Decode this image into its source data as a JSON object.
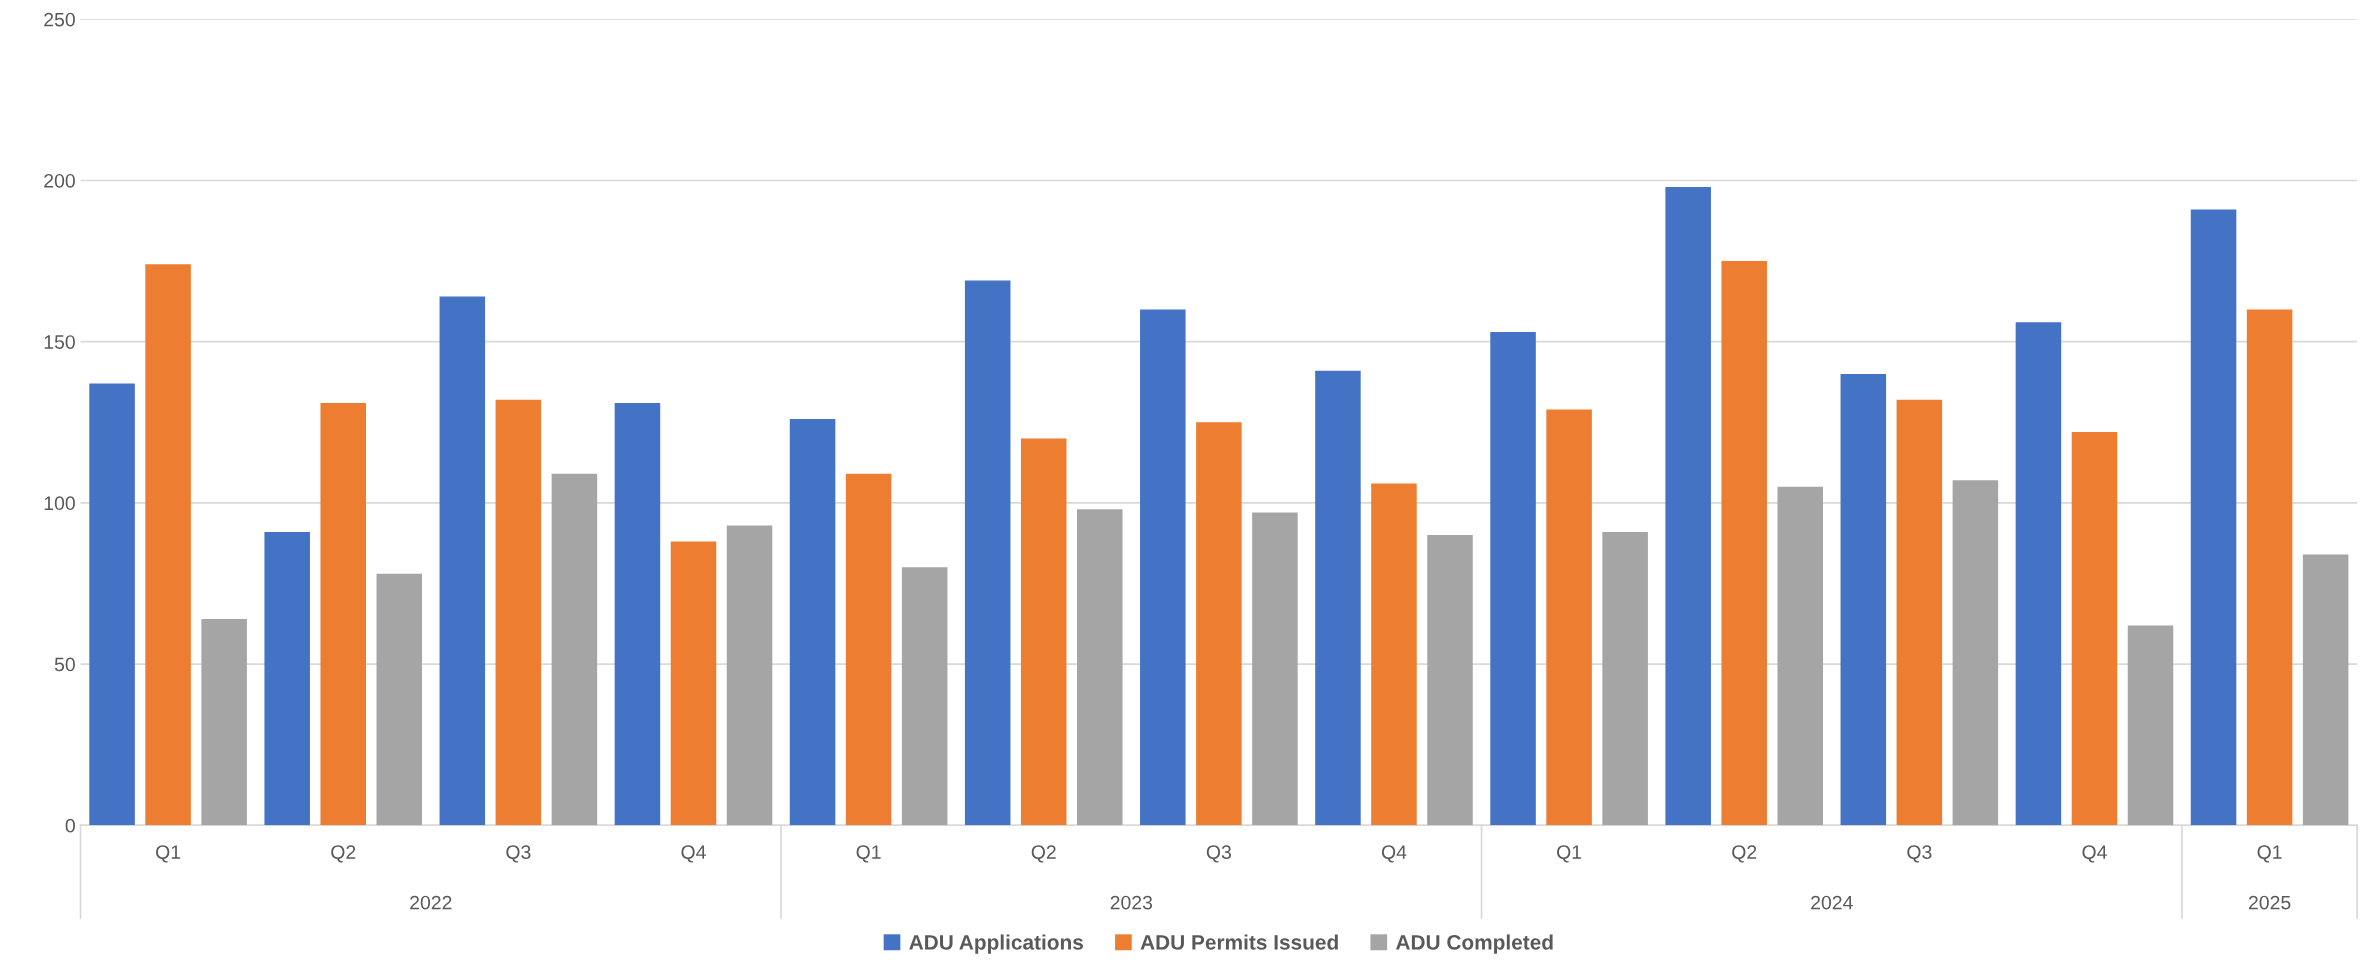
{
  "chart_data": {
    "type": "bar",
    "categories": [
      "Q1",
      "Q2",
      "Q3",
      "Q4",
      "Q1",
      "Q2",
      "Q3",
      "Q4",
      "Q1",
      "Q2",
      "Q3",
      "Q4",
      "Q1"
    ],
    "annotations": [
      "2022",
      "2023",
      "2024",
      "2025"
    ],
    "series": [
      {
        "name": "ADU Applications",
        "color": "#4472c4",
        "values": [
          137,
          91,
          164,
          131,
          126,
          169,
          160,
          141,
          153,
          198,
          140,
          156,
          191
        ]
      },
      {
        "name": "ADU Permits Issued",
        "color": "#ed7d31",
        "values": [
          174,
          131,
          132,
          88,
          109,
          120,
          125,
          106,
          129,
          175,
          132,
          122,
          160
        ]
      },
      {
        "name": "ADU Completed",
        "color": "#a5a5a5",
        "values": [
          64,
          78,
          109,
          93,
          80,
          98,
          97,
          90,
          91,
          105,
          107,
          62,
          84
        ]
      }
    ],
    "ylim": [
      0,
      250
    ],
    "yticks": [
      0,
      50,
      100,
      150,
      200,
      250
    ],
    "grid": "y",
    "legend": "bottom"
  }
}
